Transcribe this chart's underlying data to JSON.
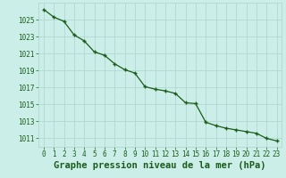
{
  "x": [
    0,
    1,
    2,
    3,
    4,
    5,
    6,
    7,
    8,
    9,
    10,
    11,
    12,
    13,
    14,
    15,
    16,
    17,
    18,
    19,
    20,
    21,
    22,
    23
  ],
  "y": [
    1026.2,
    1025.3,
    1024.8,
    1023.2,
    1022.5,
    1021.2,
    1020.8,
    1019.8,
    1019.1,
    1018.7,
    1017.1,
    1016.8,
    1016.6,
    1016.3,
    1015.2,
    1015.1,
    1012.9,
    1012.5,
    1012.2,
    1012.0,
    1011.8,
    1011.6,
    1011.0,
    1010.7
  ],
  "xlabel": "Graphe pression niveau de la mer (hPa)",
  "bg_color": "#cceee8",
  "grid_color": "#aad4cc",
  "line_color": "#1a5c1a",
  "marker_color": "#1a5c1a",
  "tick_label_color": "#1a5c1a",
  "xlabel_color": "#1a5c1a",
  "ylim": [
    1010.0,
    1027.0
  ],
  "yticks": [
    1011,
    1013,
    1015,
    1017,
    1019,
    1021,
    1023,
    1025
  ],
  "xticks": [
    0,
    1,
    2,
    3,
    4,
    5,
    6,
    7,
    8,
    9,
    10,
    11,
    12,
    13,
    14,
    15,
    16,
    17,
    18,
    19,
    20,
    21,
    22,
    23
  ],
  "tick_fontsize": 5.5,
  "xlabel_fontsize": 7.5
}
